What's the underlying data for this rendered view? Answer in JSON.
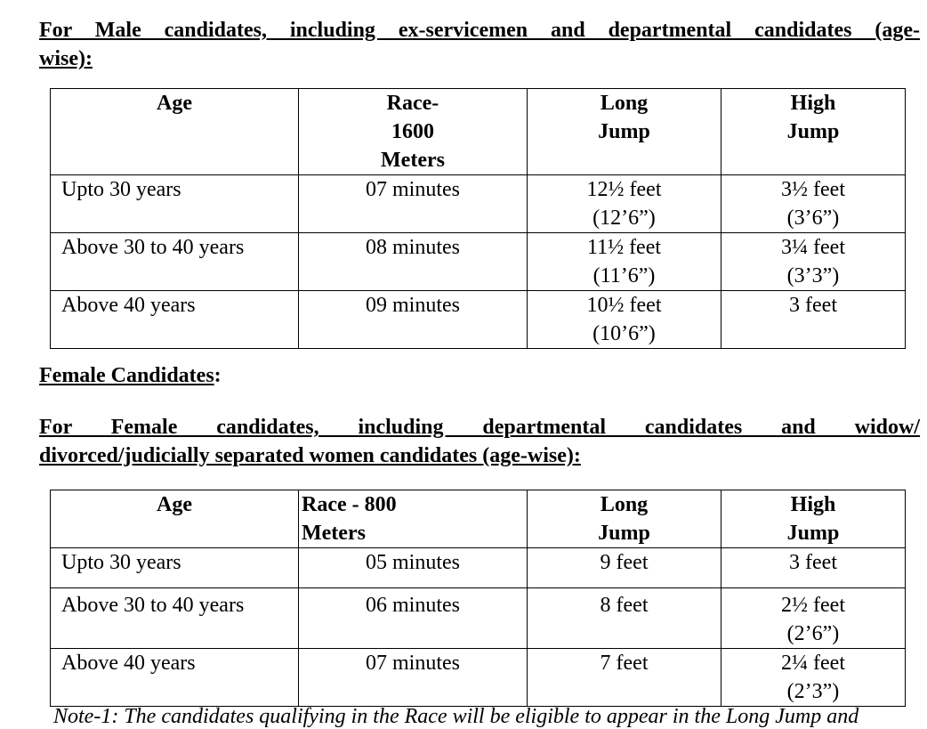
{
  "male": {
    "heading_line1": "For Male candidates, including ex-servicemen and departmental candidates (age-",
    "heading_line2": "wise):",
    "headers": [
      "Age",
      "Race-1600 Meters",
      "Long Jump",
      "High Jump"
    ],
    "rows": [
      [
        "Upto 30 years",
        "07 minutes",
        "12½ feet",
        "(12’6”)",
        "3½ feet",
        "(3’6”)"
      ],
      [
        "Above 30  to 40 years",
        "08 minutes",
        "11½ feet",
        "(11’6”)",
        "3¼ feet",
        "(3’3”)"
      ],
      [
        "Above 40 years",
        "09 minutes",
        "10½ feet",
        "(10’6”)",
        "3 feet",
        ""
      ]
    ]
  },
  "female_title": "Female Candidates",
  "female": {
    "heading_line1": "For Female candidates, including departmental candidates and widow/",
    "heading_line2": "divorced/judicially separated women candidates (age-wise):",
    "headers": [
      "Age",
      "Race - 800 Meters",
      "Long Jump",
      "High Jump"
    ],
    "rows": [
      [
        "Upto 30 years",
        "05 minutes",
        "9 feet",
        "3 feet",
        ""
      ],
      [
        "Above 30  to 40 years",
        "06 minutes",
        "8 feet",
        "2½ feet",
        "(2’6”)"
      ],
      [
        "Above 40 years",
        "07 minutes",
        "7 feet",
        "2¼ feet",
        "(2’3”)"
      ]
    ]
  },
  "note": "Note-1: The candidates qualifying in the Race will be eligible to appear in the Long Jump and"
}
